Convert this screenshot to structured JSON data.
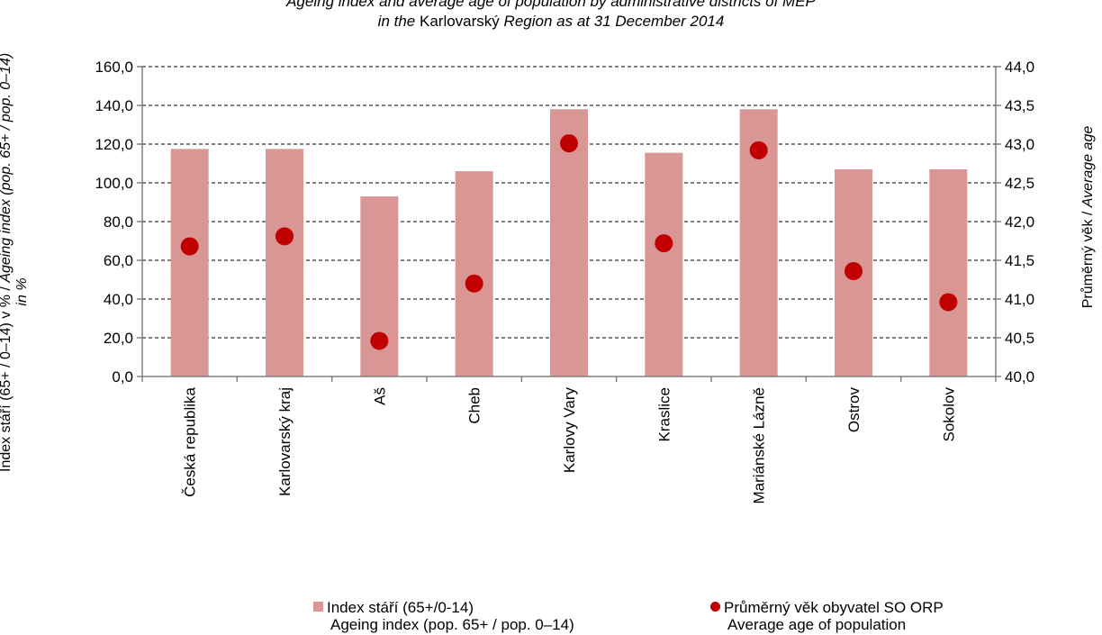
{
  "title_line_1": "Ageing index and average age of population by administrative districts of MEP",
  "title_line_2_prefix": "in the",
  "title_line_2_region": "Karlovarský",
  "title_line_2_suffix": "Region as at 31 December 2014",
  "y_left_label": {
    "czech": "Index stáří (65+ /  0–14)  v % /",
    "english": "Ageing index (pop. 65+ / pop. 0–14)",
    "unit": "in %"
  },
  "y_right_label": {
    "czech": "Průměrný věk /",
    "english": "Average age"
  },
  "legend": {
    "bar_czech": "Index stáří (65+/0-14)",
    "bar_english": "Ageing index (pop. 65+ / pop. 0–14)",
    "dot_czech": "Průměrný věk obyvatel SO ORP",
    "dot_english": "Average age of population"
  },
  "colors": {
    "bar": "#d99694",
    "dot": "#c00000",
    "axis": "#808080",
    "grid": "#000000"
  },
  "chart_data": {
    "type": "bar",
    "categories": [
      "Česká republika",
      "Karlovarský kraj",
      "Aš",
      "Cheb",
      "Karlovy Vary",
      "Kraslice",
      "Mariánské Lázně",
      "Ostrov",
      "Sokolov"
    ],
    "series": [
      {
        "name": "Index stáří (65+/0-14) Ageing index (pop. 65+ / pop. 0–14)",
        "type": "bar",
        "axis": "left",
        "values": [
          117.5,
          117.5,
          93.0,
          106.0,
          138.0,
          115.5,
          138.0,
          107.0,
          107.0
        ]
      },
      {
        "name": "Průměrný věk obyvatel SO ORP Average age of population",
        "type": "scatter",
        "axis": "right",
        "values": [
          41.68,
          41.81,
          40.46,
          41.2,
          43.01,
          41.72,
          42.92,
          41.36,
          40.96
        ]
      }
    ],
    "y_left": {
      "ylim": [
        0,
        160
      ],
      "ticks": [
        "0,0",
        "20,0",
        "40,0",
        "60,0",
        "80,0",
        "100,0",
        "120,0",
        "140,0",
        "160,0"
      ]
    },
    "y_right": {
      "ylim": [
        40,
        44
      ],
      "ticks": [
        "40,0",
        "40,5",
        "41,0",
        "41,5",
        "42,0",
        "42,5",
        "43,0",
        "43,5",
        "44,0"
      ]
    },
    "grid": true,
    "legend_position": "bottom"
  }
}
